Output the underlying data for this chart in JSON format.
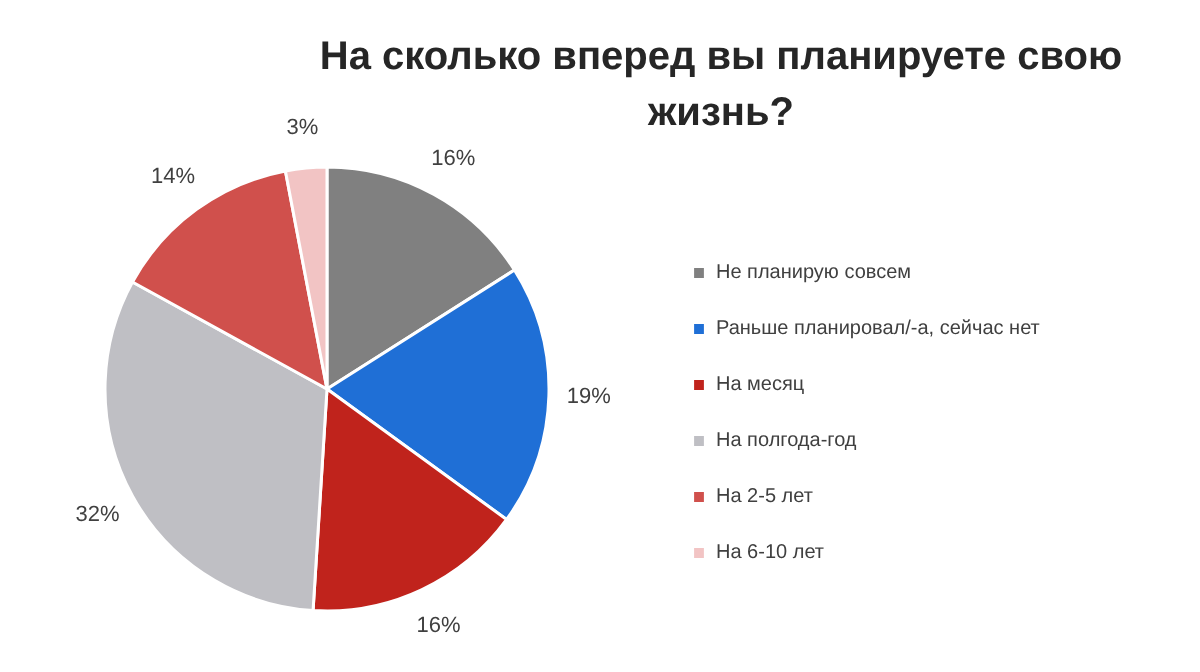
{
  "chart_data": {
    "type": "pie",
    "title": "На сколько вперед вы планируете свою жизнь?",
    "categories": [
      "Не планирую совсем",
      "Раньше планировал/-а, сейчас нет",
      "На месяц",
      "На полгода-год",
      "На 2-5 лет",
      "На 6-10 лет"
    ],
    "values": [
      16,
      19,
      16,
      32,
      14,
      3
    ],
    "colors": [
      "#808080",
      "#1f6fd6",
      "#c0231c",
      "#bfbfc4",
      "#d0504c",
      "#f2c4c4"
    ],
    "value_labels": [
      "16%",
      "19%",
      "16%",
      "32%",
      "14%",
      "3%"
    ],
    "legend": "right"
  }
}
